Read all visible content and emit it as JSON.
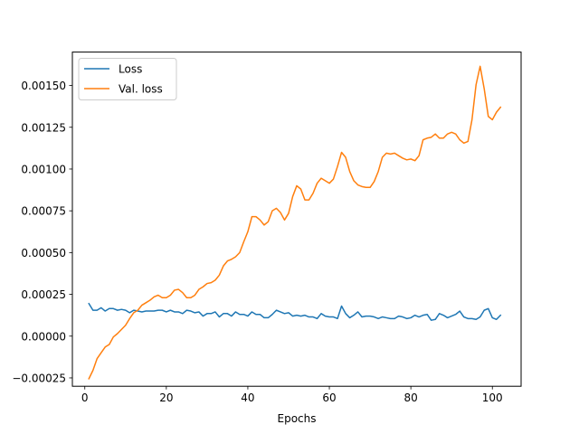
{
  "chart_data": {
    "type": "line",
    "title": "",
    "xlabel": "Epochs",
    "ylabel": "",
    "xlim": [
      -3.05,
      107.05
    ],
    "ylim": [
      -0.0003,
      0.0017
    ],
    "xticks": [
      0,
      20,
      40,
      60,
      80,
      100
    ],
    "xtick_labels": [
      "0",
      "20",
      "40",
      "60",
      "80",
      "100"
    ],
    "yticks": [
      -0.00025,
      0.0,
      0.00025,
      0.0005,
      0.00075,
      0.001,
      0.00125,
      0.0015
    ],
    "ytick_labels": [
      "−0.00025",
      "0.00000",
      "0.00025",
      "0.00050",
      "0.00075",
      "0.00100",
      "0.00125",
      "0.00150"
    ],
    "grid": false,
    "legend_position": "upper-left",
    "x": [
      1,
      2,
      3,
      4,
      5,
      6,
      7,
      8,
      9,
      10,
      11,
      12,
      13,
      14,
      15,
      16,
      17,
      18,
      19,
      20,
      21,
      22,
      23,
      24,
      25,
      26,
      27,
      28,
      29,
      30,
      31,
      32,
      33,
      34,
      35,
      36,
      37,
      38,
      39,
      40,
      41,
      42,
      43,
      44,
      45,
      46,
      47,
      48,
      49,
      50,
      51,
      52,
      53,
      54,
      55,
      56,
      57,
      58,
      59,
      60,
      61,
      62,
      63,
      64,
      65,
      66,
      67,
      68,
      69,
      70,
      71,
      72,
      73,
      74,
      75,
      76,
      77,
      78,
      79,
      80,
      81,
      82,
      83,
      84,
      85,
      86,
      87,
      88,
      89,
      90,
      91,
      92,
      93,
      94,
      95,
      96,
      97,
      98,
      99,
      100,
      101,
      102
    ],
    "series": [
      {
        "name": "Loss",
        "color": "#1f77b4",
        "values": [
          0.000195,
          0.000155,
          0.000155,
          0.00017,
          0.00015,
          0.000165,
          0.000165,
          0.000155,
          0.00016,
          0.000155,
          0.00014,
          0.000155,
          0.00015,
          0.000145,
          0.00015,
          0.00015,
          0.00015,
          0.000155,
          0.000155,
          0.000145,
          0.000155,
          0.000145,
          0.000145,
          0.000135,
          0.000155,
          0.00015,
          0.00014,
          0.000145,
          0.00012,
          0.000135,
          0.000135,
          0.000145,
          0.000115,
          0.000135,
          0.000135,
          0.00012,
          0.000145,
          0.00013,
          0.00013,
          0.00012,
          0.000145,
          0.00013,
          0.00013,
          0.00011,
          0.00011,
          0.00013,
          0.000155,
          0.000145,
          0.000135,
          0.00014,
          0.00012,
          0.000125,
          0.00012,
          0.000125,
          0.000115,
          0.000115,
          0.000105,
          0.000135,
          0.00012,
          0.000115,
          0.000115,
          0.000105,
          0.00018,
          0.000135,
          0.00011,
          0.000125,
          0.000145,
          0.000115,
          0.00012,
          0.00012,
          0.000115,
          0.000105,
          0.000115,
          0.00011,
          0.000105,
          0.000105,
          0.00012,
          0.000115,
          0.000105,
          0.00011,
          0.000125,
          0.000115,
          0.000125,
          0.00013,
          9.5e-05,
          0.0001,
          0.000135,
          0.000125,
          0.00011,
          0.00012,
          0.00013,
          0.00015,
          0.000115,
          0.000105,
          0.000105,
          0.0001,
          0.000115,
          0.000155,
          0.000165,
          0.00011,
          0.0001,
          0.000125
        ]
      },
      {
        "name": "Val. loss",
        "color": "#ff7f0e",
        "values": [
          -0.000255,
          -0.000205,
          -0.000135,
          -0.0001,
          -6.5e-05,
          -5e-05,
          -5e-06,
          1.5e-05,
          4e-05,
          6.5e-05,
          0.000105,
          0.00014,
          0.000155,
          0.000185,
          0.0002,
          0.000215,
          0.000235,
          0.000245,
          0.00023,
          0.00023,
          0.000245,
          0.000275,
          0.00028,
          0.00026,
          0.00023,
          0.00023,
          0.000245,
          0.00028,
          0.000295,
          0.000315,
          0.00032,
          0.000335,
          0.000365,
          0.00042,
          0.00045,
          0.00046,
          0.000475,
          0.0005,
          0.000565,
          0.000625,
          0.000715,
          0.000715,
          0.000695,
          0.000665,
          0.000685,
          0.00075,
          0.000765,
          0.00074,
          0.000695,
          0.000735,
          0.000835,
          0.0009,
          0.00088,
          0.000815,
          0.000815,
          0.000855,
          0.000915,
          0.000945,
          0.00093,
          0.000915,
          0.00094,
          0.001015,
          0.0011,
          0.00107,
          0.000985,
          0.00093,
          0.000905,
          0.000895,
          0.00089,
          0.00089,
          0.000925,
          0.000985,
          0.00107,
          0.001095,
          0.00109,
          0.001095,
          0.00108,
          0.001065,
          0.001055,
          0.00106,
          0.00105,
          0.00108,
          0.001175,
          0.001185,
          0.00119,
          0.00121,
          0.001185,
          0.001185,
          0.00121,
          0.00122,
          0.00121,
          0.001175,
          0.001155,
          0.001165,
          0.001295,
          0.001505,
          0.001615,
          0.00148,
          0.001315,
          0.001295,
          0.00134,
          0.00137
        ]
      }
    ]
  }
}
